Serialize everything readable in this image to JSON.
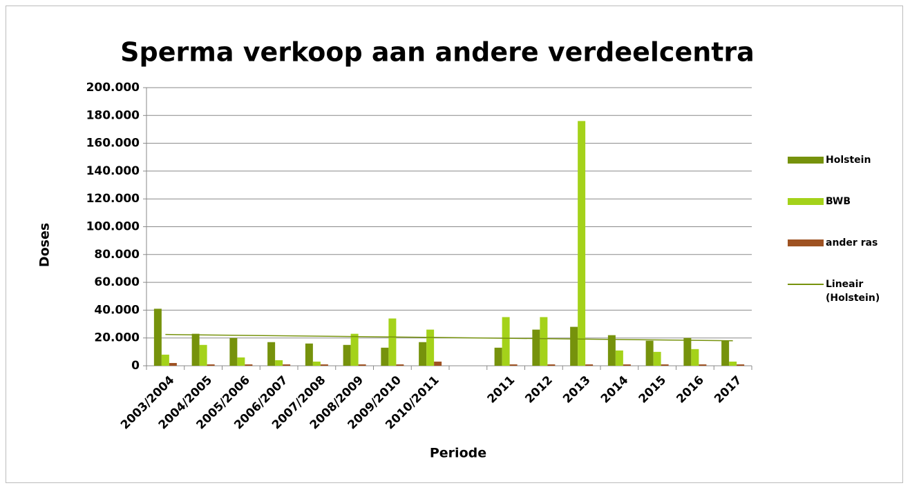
{
  "chart_data": {
    "type": "bar",
    "title": "Sperma verkoop aan andere verdeelcentra",
    "y_label": "Doses",
    "x_label": "Periode",
    "categories": [
      "2003/2004",
      "2004/2005",
      "2005/2006",
      "2006/2007",
      "2007/2008",
      "2008/2009",
      "2009/2010",
      "2010/2011",
      null,
      "2011",
      "2012",
      "2013",
      "2014",
      "2015",
      "2016",
      "2017"
    ],
    "series": [
      {
        "name": "Holstein",
        "color": "#76920c",
        "values": [
          41000,
          23000,
          20000,
          17000,
          16000,
          15000,
          13000,
          17000,
          null,
          13000,
          26000,
          28000,
          22000,
          18000,
          20000,
          18000
        ]
      },
      {
        "name": "BWB",
        "color": "#a4d21a",
        "values": [
          8000,
          15000,
          6000,
          4000,
          3000,
          23000,
          34000,
          26000,
          null,
          35000,
          35000,
          176000,
          11000,
          10000,
          12000,
          3000
        ]
      },
      {
        "name": "ander ras",
        "color": "#9e5222",
        "values": [
          2000,
          1000,
          1000,
          1000,
          1000,
          1000,
          1000,
          3000,
          null,
          1000,
          1000,
          1000,
          1000,
          1000,
          1000,
          1000
        ]
      }
    ],
    "trend": {
      "name": "Lineair (Holstein)",
      "color": "#76920c",
      "start": 22500,
      "end": 18000
    },
    "ylim": [
      0,
      200000
    ],
    "yticks": [
      0,
      {
        "value": 20000,
        "label": "20.000"
      },
      {
        "value": 40000,
        "label": "40.000"
      },
      {
        "value": 60000,
        "label": "60.000"
      },
      {
        "value": 80000,
        "label": "80.000"
      },
      {
        "value": 100000,
        "label": "100.000"
      },
      {
        "value": 120000,
        "label": "120.000"
      },
      {
        "value": 140000,
        "label": "140.000"
      },
      {
        "value": 160000,
        "label": "160.000"
      },
      {
        "value": 180000,
        "label": "180.000"
      },
      {
        "value": 200000,
        "label": "200.000"
      }
    ],
    "grid": true
  }
}
